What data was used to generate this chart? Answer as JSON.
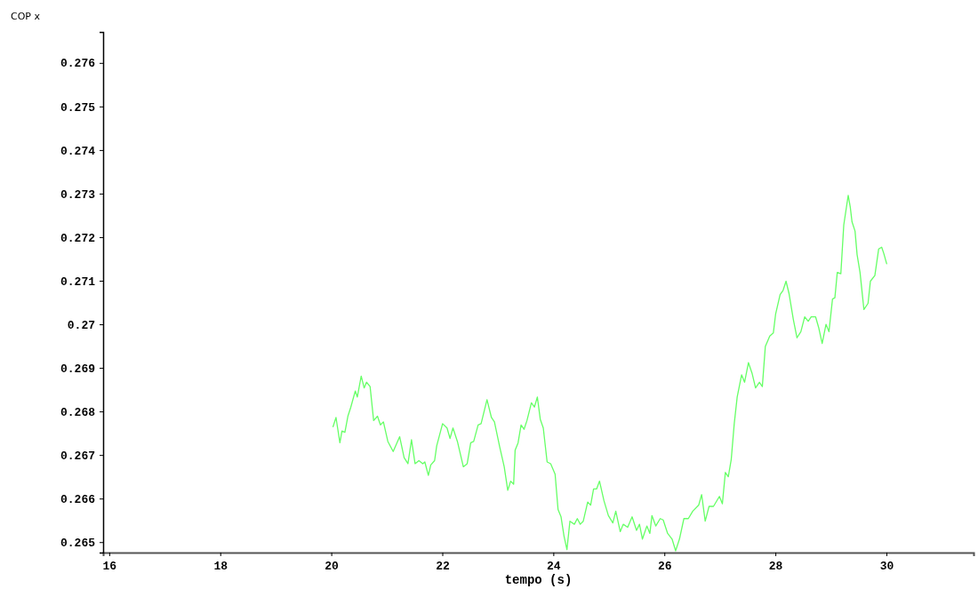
{
  "chart_data": {
    "type": "line",
    "xlabel": "tempo (s)",
    "ylabel": "COP x",
    "xlim": [
      15.89,
      31.57
    ],
    "ylim": [
      0.26476,
      0.27671
    ],
    "xticks": [
      16,
      18,
      20,
      22,
      24,
      26,
      28,
      30
    ],
    "yticks": [
      0.265,
      0.266,
      0.267,
      0.268,
      0.269,
      0.27,
      0.271,
      0.272,
      0.273,
      0.274,
      0.275,
      0.276
    ],
    "marker": "none",
    "line_style": "solid",
    "series": [
      {
        "color": "#66ff66",
        "x": [
          20.032,
          20.085,
          20.155,
          20.192,
          20.245,
          20.299,
          20.352,
          20.432,
          20.469,
          20.539,
          20.592,
          20.635,
          20.699,
          20.763,
          20.832,
          20.885,
          20.939,
          21.019,
          21.115,
          21.232,
          21.312,
          21.381,
          21.445,
          21.509,
          21.579,
          21.648,
          21.685,
          21.749,
          21.792,
          21.861,
          21.899,
          22.005,
          22.085,
          22.139,
          22.192,
          22.272,
          22.379,
          22.448,
          22.512,
          22.565,
          22.645,
          22.699,
          22.805,
          22.885,
          22.939,
          23.035,
          23.115,
          23.179,
          23.232,
          23.285,
          23.312,
          23.365,
          23.419,
          23.472,
          23.525,
          23.605,
          23.659,
          23.712,
          23.765,
          23.819,
          23.888,
          23.952,
          24.032,
          24.085,
          24.139,
          24.192,
          24.245,
          24.299,
          24.379,
          24.432,
          24.485,
          24.539,
          24.619,
          24.672,
          24.725,
          24.779,
          24.832,
          24.912,
          24.992,
          25.072,
          25.125,
          25.205,
          25.259,
          25.339,
          25.419,
          25.499,
          25.552,
          25.605,
          25.685,
          25.739,
          25.776,
          25.845,
          25.925,
          25.979,
          26.059,
          26.139,
          26.203,
          26.272,
          26.352,
          26.432,
          26.512,
          26.619,
          26.672,
          26.736,
          26.805,
          26.885,
          26.992,
          27.045,
          27.099,
          27.152,
          27.205,
          27.259,
          27.312,
          27.392,
          27.445,
          27.515,
          27.579,
          27.643,
          27.712,
          27.765,
          27.819,
          27.899,
          27.963,
          28.005,
          28.085,
          28.139,
          28.192,
          28.245,
          28.325,
          28.389,
          28.459,
          28.528,
          28.592,
          28.645,
          28.725,
          28.779,
          28.843,
          28.912,
          28.965,
          29.029,
          29.072,
          29.115,
          29.179,
          29.232,
          29.312,
          29.349,
          29.381,
          29.435,
          29.472,
          29.525,
          29.595,
          29.669,
          29.712,
          29.792,
          29.861,
          29.915,
          29.952,
          30.005
        ],
        "values": [
          0.26765,
          0.26786,
          0.26728,
          0.26755,
          0.26752,
          0.26789,
          0.2681,
          0.26847,
          0.26833,
          0.26881,
          0.26854,
          0.26867,
          0.26857,
          0.26779,
          0.26789,
          0.26769,
          0.26776,
          0.26731,
          0.26708,
          0.26742,
          0.26694,
          0.2668,
          0.26735,
          0.2668,
          0.26687,
          0.2668,
          0.26684,
          0.26653,
          0.26677,
          0.26687,
          0.26721,
          0.26772,
          0.26762,
          0.26738,
          0.26762,
          0.26731,
          0.26673,
          0.2668,
          0.26728,
          0.26731,
          0.26769,
          0.26772,
          0.26827,
          0.26786,
          0.26776,
          0.26718,
          0.26673,
          0.26619,
          0.2664,
          0.26633,
          0.26711,
          0.26728,
          0.26769,
          0.26759,
          0.26779,
          0.2682,
          0.2681,
          0.26833,
          0.26782,
          0.26762,
          0.26684,
          0.2668,
          0.26656,
          0.26575,
          0.26558,
          0.26514,
          0.26483,
          0.26548,
          0.26541,
          0.26554,
          0.26541,
          0.26548,
          0.26592,
          0.26585,
          0.26622,
          0.26622,
          0.2664,
          0.26595,
          0.26561,
          0.26544,
          0.26571,
          0.26524,
          0.26541,
          0.26534,
          0.26558,
          0.26527,
          0.26541,
          0.26507,
          0.26537,
          0.2652,
          0.26561,
          0.26537,
          0.26554,
          0.26551,
          0.2652,
          0.26507,
          0.2648,
          0.26507,
          0.26554,
          0.26554,
          0.26571,
          0.26585,
          0.26609,
          0.26548,
          0.26582,
          0.26582,
          0.26605,
          0.26588,
          0.2666,
          0.2665,
          0.2669,
          0.26772,
          0.26833,
          0.26884,
          0.26867,
          0.26912,
          0.26888,
          0.26854,
          0.26867,
          0.26857,
          0.26949,
          0.26973,
          0.2698,
          0.27024,
          0.27068,
          0.27078,
          0.27099,
          0.27071,
          0.2701,
          0.26969,
          0.26983,
          0.27017,
          0.27007,
          0.27017,
          0.27017,
          0.26993,
          0.26956,
          0.27,
          0.26983,
          0.27058,
          0.27061,
          0.27119,
          0.27116,
          0.27228,
          0.27296,
          0.27269,
          0.27235,
          0.27214,
          0.2716,
          0.27119,
          0.27034,
          0.27048,
          0.27099,
          0.27112,
          0.27173,
          0.27177,
          0.27163,
          0.27139
        ]
      }
    ]
  }
}
